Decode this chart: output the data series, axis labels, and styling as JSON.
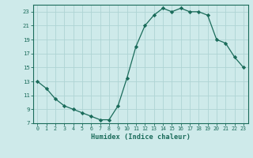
{
  "x": [
    0,
    1,
    2,
    3,
    4,
    5,
    6,
    7,
    8,
    9,
    10,
    11,
    12,
    13,
    14,
    15,
    16,
    17,
    18,
    19,
    20,
    21,
    22,
    23
  ],
  "y": [
    13,
    12,
    10.5,
    9.5,
    9,
    8.5,
    8,
    7.5,
    7.5,
    9.5,
    13.5,
    18,
    21,
    22.5,
    23.5,
    23,
    23.5,
    23,
    23,
    22.5,
    19,
    18.5,
    16.5,
    15
  ],
  "line_color": "#1a6b5a",
  "marker": "D",
  "marker_size": 2.2,
  "bg_color": "#ceeaea",
  "grid_color": "#aed4d4",
  "xlabel": "Humidex (Indice chaleur)",
  "xlim": [
    -0.5,
    23.5
  ],
  "ylim": [
    7,
    24
  ],
  "yticks": [
    7,
    9,
    11,
    13,
    15,
    17,
    19,
    21,
    23
  ],
  "xticks": [
    0,
    1,
    2,
    3,
    4,
    5,
    6,
    7,
    8,
    9,
    10,
    11,
    12,
    13,
    14,
    15,
    16,
    17,
    18,
    19,
    20,
    21,
    22,
    23
  ]
}
